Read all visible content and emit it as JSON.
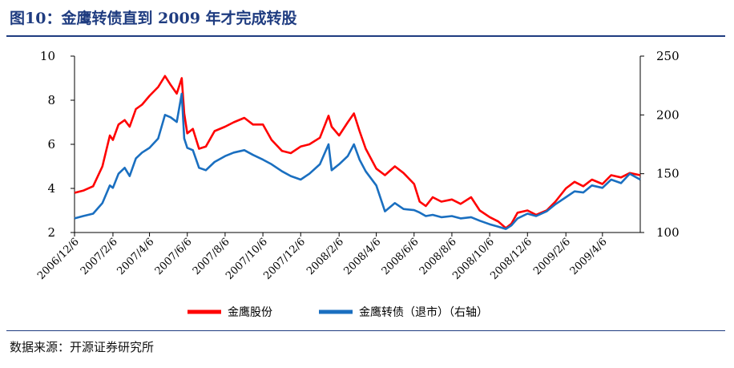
{
  "title": "图10：金鹰转债直到 2009 年才完成转股",
  "source": "数据来源：开源证券研究所",
  "colors": {
    "title": "#1f3c80",
    "series1": "#ff0000",
    "series2": "#1a6fc0"
  },
  "chart_data": {
    "type": "line",
    "title": "图10：金鹰转债直到 2009 年才完成转股",
    "left_axis": {
      "min": 2,
      "max": 10,
      "ticks": [
        "2",
        "4",
        "6",
        "8",
        "10"
      ]
    },
    "right_axis": {
      "min": 100,
      "max": 250,
      "ticks": [
        "100",
        "150",
        "200",
        "250"
      ]
    },
    "x_range": [
      "2006-12-06",
      "2009-06-06"
    ],
    "x_ticks": [
      "2006/12/6",
      "2007/2/6",
      "2007/4/6",
      "2007/6/6",
      "2007/8/6",
      "2007/10/6",
      "2007/12/6",
      "2008/2/6",
      "2008/4/6",
      "2008/6/6",
      "2008/8/6",
      "2008/10/6",
      "2008/12/6",
      "2009/2/6",
      "2009/4/6"
    ],
    "legend_position": "bottom",
    "grid": false,
    "series": [
      {
        "name": "金鹰股份",
        "axis": "left",
        "color": "#ff0000",
        "points": [
          [
            "2006-12-06",
            3.8
          ],
          [
            "2006-12-20",
            3.9
          ],
          [
            "2007-01-05",
            4.1
          ],
          [
            "2007-01-20",
            5.0
          ],
          [
            "2007-02-01",
            6.4
          ],
          [
            "2007-02-06",
            6.2
          ],
          [
            "2007-02-15",
            6.9
          ],
          [
            "2007-02-25",
            7.1
          ],
          [
            "2007-03-05",
            6.8
          ],
          [
            "2007-03-15",
            7.6
          ],
          [
            "2007-03-25",
            7.8
          ],
          [
            "2007-04-06",
            8.2
          ],
          [
            "2007-04-20",
            8.6
          ],
          [
            "2007-05-01",
            9.1
          ],
          [
            "2007-05-10",
            8.7
          ],
          [
            "2007-05-20",
            8.3
          ],
          [
            "2007-05-28",
            9.0
          ],
          [
            "2007-06-01",
            7.4
          ],
          [
            "2007-06-06",
            6.5
          ],
          [
            "2007-06-15",
            6.7
          ],
          [
            "2007-06-25",
            5.8
          ],
          [
            "2007-07-06",
            5.9
          ],
          [
            "2007-07-20",
            6.6
          ],
          [
            "2007-08-06",
            6.8
          ],
          [
            "2007-08-20",
            7.0
          ],
          [
            "2007-09-06",
            7.2
          ],
          [
            "2007-09-20",
            6.9
          ],
          [
            "2007-10-06",
            6.9
          ],
          [
            "2007-10-20",
            6.2
          ],
          [
            "2007-11-06",
            5.7
          ],
          [
            "2007-11-20",
            5.6
          ],
          [
            "2007-12-06",
            5.9
          ],
          [
            "2007-12-20",
            6.0
          ],
          [
            "2008-01-06",
            6.3
          ],
          [
            "2008-01-20",
            7.3
          ],
          [
            "2008-01-25",
            6.8
          ],
          [
            "2008-02-06",
            6.4
          ],
          [
            "2008-02-20",
            7.0
          ],
          [
            "2008-03-01",
            7.4
          ],
          [
            "2008-03-10",
            6.6
          ],
          [
            "2008-03-20",
            5.8
          ],
          [
            "2008-04-06",
            4.9
          ],
          [
            "2008-04-20",
            4.6
          ],
          [
            "2008-05-06",
            5.0
          ],
          [
            "2008-05-20",
            4.7
          ],
          [
            "2008-06-06",
            4.2
          ],
          [
            "2008-06-15",
            3.4
          ],
          [
            "2008-06-25",
            3.2
          ],
          [
            "2008-07-06",
            3.6
          ],
          [
            "2008-07-20",
            3.4
          ],
          [
            "2008-08-06",
            3.5
          ],
          [
            "2008-08-20",
            3.3
          ],
          [
            "2008-09-06",
            3.6
          ],
          [
            "2008-09-20",
            3.0
          ],
          [
            "2008-10-06",
            2.7
          ],
          [
            "2008-10-20",
            2.5
          ],
          [
            "2008-11-01",
            2.2
          ],
          [
            "2008-11-10",
            2.4
          ],
          [
            "2008-11-20",
            2.9
          ],
          [
            "2008-12-06",
            3.0
          ],
          [
            "2008-12-20",
            2.8
          ],
          [
            "2009-01-06",
            3.0
          ],
          [
            "2009-01-20",
            3.4
          ],
          [
            "2009-02-06",
            4.0
          ],
          [
            "2009-02-20",
            4.3
          ],
          [
            "2009-03-06",
            4.1
          ],
          [
            "2009-03-20",
            4.4
          ],
          [
            "2009-04-06",
            4.2
          ],
          [
            "2009-04-20",
            4.6
          ],
          [
            "2009-05-06",
            4.5
          ],
          [
            "2009-05-20",
            4.7
          ],
          [
            "2009-06-06",
            4.6
          ]
        ]
      },
      {
        "name": "金鹰转债（退市）（右轴）",
        "axis": "right",
        "color": "#1a6fc0",
        "points": [
          [
            "2006-12-06",
            112
          ],
          [
            "2006-12-20",
            114
          ],
          [
            "2007-01-05",
            116
          ],
          [
            "2007-01-20",
            125
          ],
          [
            "2007-02-01",
            140
          ],
          [
            "2007-02-06",
            138
          ],
          [
            "2007-02-15",
            150
          ],
          [
            "2007-02-25",
            155
          ],
          [
            "2007-03-05",
            148
          ],
          [
            "2007-03-15",
            163
          ],
          [
            "2007-03-25",
            168
          ],
          [
            "2007-04-06",
            172
          ],
          [
            "2007-04-20",
            180
          ],
          [
            "2007-05-01",
            200
          ],
          [
            "2007-05-10",
            198
          ],
          [
            "2007-05-20",
            194
          ],
          [
            "2007-05-28",
            218
          ],
          [
            "2007-06-01",
            180
          ],
          [
            "2007-06-06",
            172
          ],
          [
            "2007-06-15",
            170
          ],
          [
            "2007-06-25",
            155
          ],
          [
            "2007-07-06",
            153
          ],
          [
            "2007-07-20",
            160
          ],
          [
            "2007-08-06",
            165
          ],
          [
            "2007-08-20",
            168
          ],
          [
            "2007-09-06",
            170
          ],
          [
            "2007-09-20",
            166
          ],
          [
            "2007-10-06",
            162
          ],
          [
            "2007-10-20",
            158
          ],
          [
            "2007-11-06",
            152
          ],
          [
            "2007-11-20",
            148
          ],
          [
            "2007-12-06",
            145
          ],
          [
            "2007-12-20",
            150
          ],
          [
            "2008-01-06",
            158
          ],
          [
            "2008-01-20",
            175
          ],
          [
            "2008-01-25",
            153
          ],
          [
            "2008-02-06",
            158
          ],
          [
            "2008-02-20",
            165
          ],
          [
            "2008-03-01",
            175
          ],
          [
            "2008-03-10",
            162
          ],
          [
            "2008-03-20",
            152
          ],
          [
            "2008-04-06",
            140
          ],
          [
            "2008-04-20",
            118
          ],
          [
            "2008-05-06",
            125
          ],
          [
            "2008-05-20",
            120
          ],
          [
            "2008-06-06",
            119
          ],
          [
            "2008-06-15",
            117
          ],
          [
            "2008-06-25",
            114
          ],
          [
            "2008-07-06",
            115
          ],
          [
            "2008-07-20",
            113
          ],
          [
            "2008-08-06",
            114
          ],
          [
            "2008-08-20",
            112
          ],
          [
            "2008-09-06",
            113
          ],
          [
            "2008-09-20",
            110
          ],
          [
            "2008-10-06",
            107
          ],
          [
            "2008-10-20",
            105
          ],
          [
            "2008-11-01",
            103
          ],
          [
            "2008-11-10",
            106
          ],
          [
            "2008-11-20",
            112
          ],
          [
            "2008-12-06",
            116
          ],
          [
            "2008-12-20",
            114
          ],
          [
            "2009-01-06",
            118
          ],
          [
            "2009-01-20",
            124
          ],
          [
            "2009-02-06",
            130
          ],
          [
            "2009-02-20",
            135
          ],
          [
            "2009-03-06",
            134
          ],
          [
            "2009-03-20",
            140
          ],
          [
            "2009-04-06",
            138
          ],
          [
            "2009-04-20",
            145
          ],
          [
            "2009-05-06",
            142
          ],
          [
            "2009-05-20",
            150
          ],
          [
            "2009-06-06",
            145
          ]
        ]
      }
    ]
  }
}
